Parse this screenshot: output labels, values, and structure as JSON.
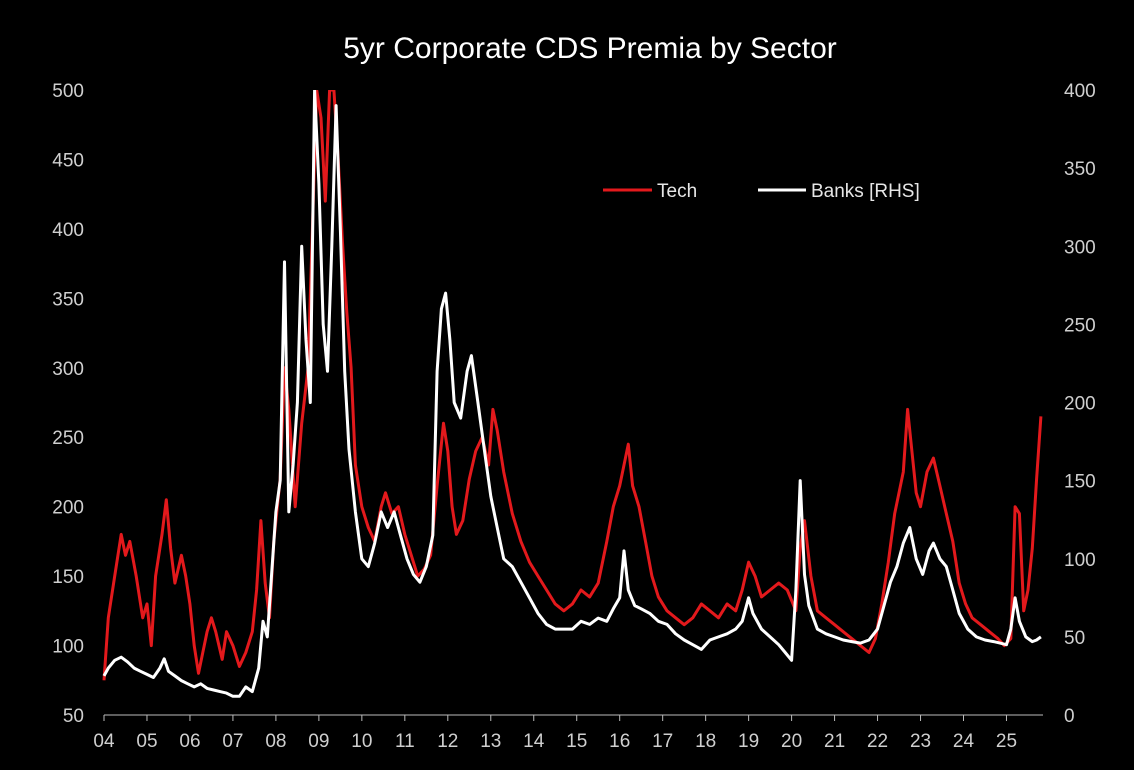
{
  "chart_data": {
    "type": "line",
    "title": "5yr Corporate CDS Premia by Sector",
    "xlabel": "",
    "ylabel": "",
    "grid": false,
    "legend_position": "top-right",
    "x_ticks": [
      "04",
      "05",
      "06",
      "07",
      "08",
      "09",
      "10",
      "11",
      "12",
      "13",
      "14",
      "15",
      "16",
      "17",
      "18",
      "19",
      "20",
      "21",
      "22",
      "23",
      "24",
      "25"
    ],
    "x_range": [
      2004.0,
      2025.85
    ],
    "y_left": {
      "ylim": [
        50,
        500
      ],
      "ticks": [
        "50",
        "100",
        "150",
        "200",
        "250",
        "300",
        "350",
        "400",
        "450",
        "500"
      ]
    },
    "y_right": {
      "ylim": [
        0,
        400
      ],
      "ticks": [
        "0",
        "50",
        "100",
        "150",
        "200",
        "250",
        "300",
        "350",
        "400"
      ]
    },
    "series": [
      {
        "name": "Tech",
        "axis": "left",
        "color": "#e3191c",
        "points": [
          [
            2004.0,
            75
          ],
          [
            2004.1,
            120
          ],
          [
            2004.25,
            150
          ],
          [
            2004.4,
            180
          ],
          [
            2004.5,
            165
          ],
          [
            2004.6,
            175
          ],
          [
            2004.75,
            150
          ],
          [
            2004.9,
            120
          ],
          [
            2005.0,
            130
          ],
          [
            2005.1,
            100
          ],
          [
            2005.2,
            150
          ],
          [
            2005.35,
            180
          ],
          [
            2005.45,
            205
          ],
          [
            2005.55,
            170
          ],
          [
            2005.65,
            145
          ],
          [
            2005.8,
            165
          ],
          [
            2005.9,
            150
          ],
          [
            2006.0,
            130
          ],
          [
            2006.1,
            100
          ],
          [
            2006.2,
            80
          ],
          [
            2006.3,
            95
          ],
          [
            2006.4,
            110
          ],
          [
            2006.5,
            120
          ],
          [
            2006.6,
            110
          ],
          [
            2006.75,
            90
          ],
          [
            2006.85,
            110
          ],
          [
            2007.0,
            100
          ],
          [
            2007.15,
            85
          ],
          [
            2007.3,
            95
          ],
          [
            2007.45,
            110
          ],
          [
            2007.55,
            140
          ],
          [
            2007.65,
            190
          ],
          [
            2007.75,
            145
          ],
          [
            2007.85,
            120
          ],
          [
            2007.95,
            175
          ],
          [
            2008.1,
            220
          ],
          [
            2008.2,
            300
          ],
          [
            2008.3,
            270
          ],
          [
            2008.45,
            200
          ],
          [
            2008.6,
            260
          ],
          [
            2008.75,
            300
          ],
          [
            2008.85,
            400
          ],
          [
            2008.95,
            500
          ],
          [
            2009.05,
            480
          ],
          [
            2009.15,
            420
          ],
          [
            2009.25,
            500
          ],
          [
            2009.35,
            500
          ],
          [
            2009.45,
            450
          ],
          [
            2009.55,
            390
          ],
          [
            2009.65,
            340
          ],
          [
            2009.75,
            300
          ],
          [
            2009.85,
            230
          ],
          [
            2010.0,
            200
          ],
          [
            2010.15,
            185
          ],
          [
            2010.3,
            175
          ],
          [
            2010.45,
            200
          ],
          [
            2010.55,
            210
          ],
          [
            2010.7,
            195
          ],
          [
            2010.85,
            200
          ],
          [
            2011.0,
            180
          ],
          [
            2011.15,
            165
          ],
          [
            2011.3,
            150
          ],
          [
            2011.45,
            155
          ],
          [
            2011.6,
            165
          ],
          [
            2011.75,
            215
          ],
          [
            2011.9,
            260
          ],
          [
            2012.0,
            240
          ],
          [
            2012.1,
            200
          ],
          [
            2012.2,
            180
          ],
          [
            2012.35,
            190
          ],
          [
            2012.5,
            220
          ],
          [
            2012.65,
            240
          ],
          [
            2012.8,
            250
          ],
          [
            2012.95,
            230
          ],
          [
            2013.05,
            270
          ],
          [
            2013.15,
            255
          ],
          [
            2013.3,
            225
          ],
          [
            2013.5,
            195
          ],
          [
            2013.7,
            175
          ],
          [
            2013.9,
            160
          ],
          [
            2014.1,
            150
          ],
          [
            2014.3,
            140
          ],
          [
            2014.5,
            130
          ],
          [
            2014.7,
            125
          ],
          [
            2014.9,
            130
          ],
          [
            2015.1,
            140
          ],
          [
            2015.3,
            135
          ],
          [
            2015.5,
            145
          ],
          [
            2015.7,
            175
          ],
          [
            2015.85,
            200
          ],
          [
            2016.0,
            215
          ],
          [
            2016.1,
            230
          ],
          [
            2016.2,
            245
          ],
          [
            2016.3,
            215
          ],
          [
            2016.45,
            200
          ],
          [
            2016.6,
            175
          ],
          [
            2016.75,
            150
          ],
          [
            2016.9,
            135
          ],
          [
            2017.1,
            125
          ],
          [
            2017.3,
            120
          ],
          [
            2017.5,
            115
          ],
          [
            2017.7,
            120
          ],
          [
            2017.9,
            130
          ],
          [
            2018.1,
            125
          ],
          [
            2018.3,
            120
          ],
          [
            2018.5,
            130
          ],
          [
            2018.7,
            125
          ],
          [
            2018.85,
            140
          ],
          [
            2019.0,
            160
          ],
          [
            2019.15,
            150
          ],
          [
            2019.3,
            135
          ],
          [
            2019.5,
            140
          ],
          [
            2019.7,
            145
          ],
          [
            2019.9,
            140
          ],
          [
            2020.1,
            125
          ],
          [
            2020.2,
            170
          ],
          [
            2020.3,
            190
          ],
          [
            2020.45,
            150
          ],
          [
            2020.6,
            125
          ],
          [
            2020.8,
            120
          ],
          [
            2021.0,
            115
          ],
          [
            2021.2,
            110
          ],
          [
            2021.4,
            105
          ],
          [
            2021.6,
            100
          ],
          [
            2021.8,
            95
          ],
          [
            2021.95,
            105
          ],
          [
            2022.1,
            130
          ],
          [
            2022.25,
            160
          ],
          [
            2022.4,
            195
          ],
          [
            2022.5,
            210
          ],
          [
            2022.6,
            225
          ],
          [
            2022.7,
            270
          ],
          [
            2022.8,
            240
          ],
          [
            2022.9,
            210
          ],
          [
            2023.0,
            200
          ],
          [
            2023.15,
            225
          ],
          [
            2023.3,
            235
          ],
          [
            2023.45,
            215
          ],
          [
            2023.6,
            195
          ],
          [
            2023.75,
            175
          ],
          [
            2023.9,
            145
          ],
          [
            2024.05,
            130
          ],
          [
            2024.2,
            120
          ],
          [
            2024.4,
            115
          ],
          [
            2024.6,
            110
          ],
          [
            2024.8,
            105
          ],
          [
            2024.95,
            100
          ],
          [
            2025.1,
            105
          ],
          [
            2025.2,
            200
          ],
          [
            2025.3,
            195
          ],
          [
            2025.4,
            125
          ],
          [
            2025.5,
            140
          ],
          [
            2025.6,
            170
          ],
          [
            2025.7,
            220
          ],
          [
            2025.8,
            265
          ]
        ]
      },
      {
        "name": "Banks [RHS]",
        "axis": "right",
        "color": "#ffffff",
        "points": [
          [
            2004.0,
            25
          ],
          [
            2004.1,
            30
          ],
          [
            2004.25,
            35
          ],
          [
            2004.4,
            37
          ],
          [
            2004.55,
            34
          ],
          [
            2004.7,
            30
          ],
          [
            2004.85,
            28
          ],
          [
            2005.0,
            26
          ],
          [
            2005.15,
            24
          ],
          [
            2005.3,
            30
          ],
          [
            2005.4,
            36
          ],
          [
            2005.5,
            28
          ],
          [
            2005.65,
            25
          ],
          [
            2005.8,
            22
          ],
          [
            2005.95,
            20
          ],
          [
            2006.1,
            18
          ],
          [
            2006.25,
            20
          ],
          [
            2006.4,
            17
          ],
          [
            2006.55,
            16
          ],
          [
            2006.7,
            15
          ],
          [
            2006.85,
            14
          ],
          [
            2007.0,
            12
          ],
          [
            2007.15,
            12
          ],
          [
            2007.3,
            18
          ],
          [
            2007.45,
            15
          ],
          [
            2007.6,
            30
          ],
          [
            2007.7,
            60
          ],
          [
            2007.8,
            50
          ],
          [
            2007.9,
            90
          ],
          [
            2008.0,
            130
          ],
          [
            2008.1,
            150
          ],
          [
            2008.2,
            290
          ],
          [
            2008.3,
            130
          ],
          [
            2008.4,
            160
          ],
          [
            2008.5,
            200
          ],
          [
            2008.6,
            300
          ],
          [
            2008.7,
            240
          ],
          [
            2008.8,
            200
          ],
          [
            2008.9,
            400
          ],
          [
            2009.0,
            340
          ],
          [
            2009.1,
            250
          ],
          [
            2009.2,
            220
          ],
          [
            2009.3,
            300
          ],
          [
            2009.4,
            390
          ],
          [
            2009.5,
            310
          ],
          [
            2009.6,
            220
          ],
          [
            2009.7,
            170
          ],
          [
            2009.85,
            130
          ],
          [
            2010.0,
            100
          ],
          [
            2010.15,
            95
          ],
          [
            2010.3,
            110
          ],
          [
            2010.45,
            130
          ],
          [
            2010.6,
            120
          ],
          [
            2010.75,
            130
          ],
          [
            2010.9,
            115
          ],
          [
            2011.05,
            100
          ],
          [
            2011.2,
            90
          ],
          [
            2011.35,
            85
          ],
          [
            2011.5,
            95
          ],
          [
            2011.65,
            115
          ],
          [
            2011.75,
            220
          ],
          [
            2011.85,
            260
          ],
          [
            2011.95,
            270
          ],
          [
            2012.05,
            240
          ],
          [
            2012.15,
            200
          ],
          [
            2012.3,
            190
          ],
          [
            2012.45,
            220
          ],
          [
            2012.55,
            230
          ],
          [
            2012.7,
            200
          ],
          [
            2012.85,
            170
          ],
          [
            2013.0,
            140
          ],
          [
            2013.15,
            120
          ],
          [
            2013.3,
            100
          ],
          [
            2013.5,
            95
          ],
          [
            2013.7,
            85
          ],
          [
            2013.9,
            75
          ],
          [
            2014.1,
            65
          ],
          [
            2014.3,
            58
          ],
          [
            2014.5,
            55
          ],
          [
            2014.7,
            55
          ],
          [
            2014.9,
            55
          ],
          [
            2015.1,
            60
          ],
          [
            2015.3,
            58
          ],
          [
            2015.5,
            62
          ],
          [
            2015.7,
            60
          ],
          [
            2015.85,
            68
          ],
          [
            2016.0,
            75
          ],
          [
            2016.1,
            105
          ],
          [
            2016.2,
            80
          ],
          [
            2016.35,
            70
          ],
          [
            2016.5,
            68
          ],
          [
            2016.7,
            65
          ],
          [
            2016.9,
            60
          ],
          [
            2017.1,
            58
          ],
          [
            2017.3,
            52
          ],
          [
            2017.5,
            48
          ],
          [
            2017.7,
            45
          ],
          [
            2017.9,
            42
          ],
          [
            2018.1,
            48
          ],
          [
            2018.3,
            50
          ],
          [
            2018.5,
            52
          ],
          [
            2018.7,
            55
          ],
          [
            2018.85,
            60
          ],
          [
            2019.0,
            75
          ],
          [
            2019.1,
            65
          ],
          [
            2019.3,
            55
          ],
          [
            2019.5,
            50
          ],
          [
            2019.7,
            45
          ],
          [
            2019.85,
            40
          ],
          [
            2020.0,
            35
          ],
          [
            2020.1,
            80
          ],
          [
            2020.2,
            150
          ],
          [
            2020.3,
            90
          ],
          [
            2020.4,
            70
          ],
          [
            2020.6,
            55
          ],
          [
            2020.8,
            52
          ],
          [
            2021.0,
            50
          ],
          [
            2021.2,
            48
          ],
          [
            2021.4,
            47
          ],
          [
            2021.6,
            46
          ],
          [
            2021.8,
            48
          ],
          [
            2022.0,
            55
          ],
          [
            2022.15,
            70
          ],
          [
            2022.3,
            85
          ],
          [
            2022.45,
            95
          ],
          [
            2022.6,
            110
          ],
          [
            2022.75,
            120
          ],
          [
            2022.9,
            100
          ],
          [
            2023.05,
            90
          ],
          [
            2023.2,
            105
          ],
          [
            2023.3,
            110
          ],
          [
            2023.45,
            100
          ],
          [
            2023.6,
            95
          ],
          [
            2023.75,
            80
          ],
          [
            2023.9,
            65
          ],
          [
            2024.1,
            55
          ],
          [
            2024.3,
            50
          ],
          [
            2024.5,
            48
          ],
          [
            2024.7,
            47
          ],
          [
            2024.85,
            46
          ],
          [
            2025.0,
            45
          ],
          [
            2025.1,
            55
          ],
          [
            2025.2,
            75
          ],
          [
            2025.3,
            60
          ],
          [
            2025.45,
            50
          ],
          [
            2025.6,
            47
          ],
          [
            2025.7,
            48
          ],
          [
            2025.8,
            50
          ]
        ]
      }
    ]
  }
}
